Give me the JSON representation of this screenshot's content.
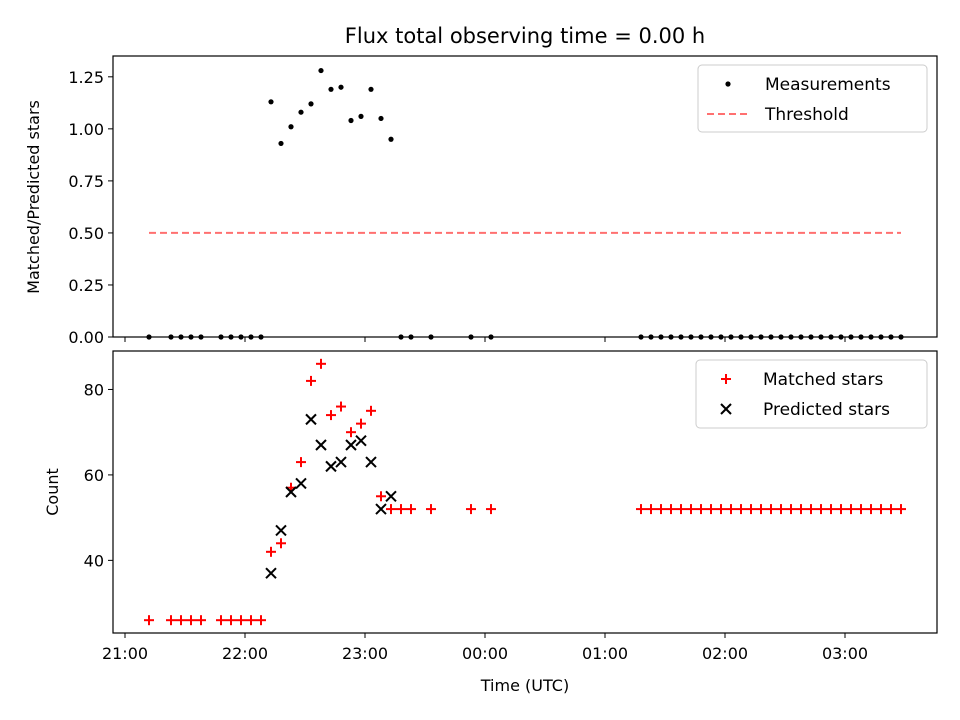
{
  "chart_data": {
    "title": "Flux total observing time = 0.00 h",
    "xlabel": "Time (UTC)",
    "x_ticks": [
      "21:00",
      "22:00",
      "23:00",
      "00:00",
      "01:00",
      "02:00",
      "03:00"
    ],
    "top": {
      "type": "scatter",
      "ylabel": "Matched/Predicted stars",
      "ylim": [
        0,
        1.35
      ],
      "y_ticks": [
        "0.00",
        "0.25",
        "0.50",
        "0.75",
        "1.00",
        "1.25"
      ],
      "legend_position": "top-right",
      "series": [
        {
          "name": "Measurements",
          "color": "#000000",
          "marker": "dot",
          "x": [
            "21:12",
            "21:23",
            "21:28",
            "21:33",
            "21:38",
            "21:48",
            "21:53",
            "21:58",
            "22:03",
            "22:08",
            "22:13",
            "22:18",
            "22:23",
            "22:28",
            "22:33",
            "22:38",
            "22:43",
            "22:48",
            "22:53",
            "22:58",
            "23:03",
            "23:08",
            "23:13",
            "23:18",
            "23:23",
            "23:33",
            "23:53",
            "00:03",
            "01:18",
            "01:23",
            "01:28",
            "01:33",
            "01:38",
            "01:43",
            "01:48",
            "01:53",
            "01:58",
            "02:03",
            "02:08",
            "02:13",
            "02:18",
            "02:23",
            "02:28",
            "02:33",
            "02:38",
            "02:43",
            "02:48",
            "02:53",
            "02:58",
            "03:03",
            "03:08",
            "03:13",
            "03:18",
            "03:23",
            "03:28"
          ],
          "y": [
            0,
            0,
            0,
            0,
            0,
            0,
            0,
            0,
            0,
            0,
            1.13,
            0.93,
            1.01,
            1.08,
            1.12,
            1.28,
            1.19,
            1.2,
            1.04,
            1.06,
            1.19,
            1.05,
            0.95,
            0,
            0,
            0,
            0,
            0,
            0,
            0,
            0,
            0,
            0,
            0,
            0,
            0,
            0,
            0,
            0,
            0,
            0,
            0,
            0,
            0,
            0,
            0,
            0,
            0,
            0,
            0,
            0,
            0,
            0,
            0,
            0
          ]
        },
        {
          "name": "Threshold",
          "color": "#ff7070",
          "style": "dashed",
          "x": [
            "21:12",
            "03:28"
          ],
          "y": [
            0.5,
            0.5
          ]
        }
      ]
    },
    "bottom": {
      "type": "scatter",
      "ylabel": "Count",
      "ylim": [
        23,
        89
      ],
      "y_ticks": [
        "40",
        "60",
        "80"
      ],
      "legend_position": "top-right",
      "series": [
        {
          "name": "Matched stars",
          "color": "#ff0000",
          "marker": "plus",
          "x": [
            "21:12",
            "21:23",
            "21:28",
            "21:33",
            "21:38",
            "21:48",
            "21:53",
            "21:58",
            "22:03",
            "22:08",
            "22:13",
            "22:18",
            "22:23",
            "22:28",
            "22:33",
            "22:38",
            "22:43",
            "22:48",
            "22:53",
            "22:58",
            "23:03",
            "23:08",
            "23:13",
            "23:18",
            "23:23",
            "23:33",
            "23:53",
            "00:03",
            "01:18",
            "01:23",
            "01:28",
            "01:33",
            "01:38",
            "01:43",
            "01:48",
            "01:53",
            "01:58",
            "02:03",
            "02:08",
            "02:13",
            "02:18",
            "02:23",
            "02:28",
            "02:33",
            "02:38",
            "02:43",
            "02:48",
            "02:53",
            "02:58",
            "03:03",
            "03:08",
            "03:13",
            "03:18",
            "03:23",
            "03:28"
          ],
          "y": [
            26,
            26,
            26,
            26,
            26,
            26,
            26,
            26,
            26,
            26,
            42,
            44,
            57,
            63,
            82,
            86,
            74,
            76,
            70,
            72,
            75,
            55,
            52,
            52,
            52,
            52,
            52,
            52,
            52,
            52,
            52,
            52,
            52,
            52,
            52,
            52,
            52,
            52,
            52,
            52,
            52,
            52,
            52,
            52,
            52,
            52,
            52,
            52,
            52,
            52,
            52,
            52,
            52,
            52,
            52
          ]
        },
        {
          "name": "Predicted stars",
          "color": "#000000",
          "marker": "x",
          "x": [
            "22:13",
            "22:18",
            "22:23",
            "22:28",
            "22:33",
            "22:38",
            "22:43",
            "22:48",
            "22:53",
            "22:58",
            "23:03",
            "23:08",
            "23:13"
          ],
          "y": [
            37,
            47,
            56,
            58,
            73,
            67,
            62,
            63,
            67,
            68,
            63,
            52,
            55
          ]
        }
      ]
    }
  }
}
